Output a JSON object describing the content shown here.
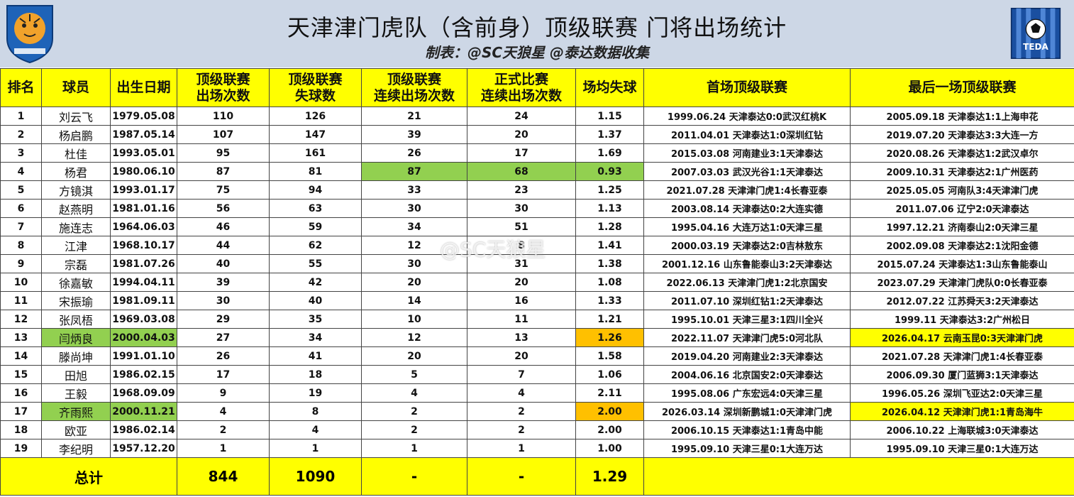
{
  "title": "天津津门虎队（含前身）顶级联赛 门将出场统计",
  "subtitle": "制表：@SC天狼星 @泰达数据收集",
  "logos": {
    "left_logo": "tianjin-tiger-crest",
    "right_logo": "teda-crest",
    "right_text": "TEDA"
  },
  "colors": {
    "header_bg": "#ffff00",
    "highlight_green": "#92d050",
    "highlight_orange": "#ffc000",
    "banner_bg": "#cdd7e6"
  },
  "table": {
    "headers": {
      "rank": "排名",
      "player": "球员",
      "birth": "出生日期",
      "apps_l1": "顶级联赛",
      "apps_l2": "出场次数",
      "ga_l1": "顶级联赛",
      "ga_l2": "失球数",
      "cons_l1": "顶级联赛",
      "cons_l2": "连续出场次数",
      "offcons_l1": "正式比赛",
      "offcons_l2": "连续出场次数",
      "avg": "场均失球",
      "first": "首场顶级联赛",
      "last": "最后一场顶级联赛"
    },
    "rows": [
      {
        "rank": "1",
        "name": "刘云飞",
        "birth": "1979.05.08",
        "apps": "110",
        "ga": "126",
        "cons": "21",
        "offcons": "24",
        "avg": "1.15",
        "first": "1999.06.24 天津泰达0:0武汉红桃K",
        "last": "2005.09.18 天津泰达1:1上海申花"
      },
      {
        "rank": "2",
        "name": "杨启鹏",
        "birth": "1987.05.14",
        "apps": "107",
        "ga": "147",
        "cons": "39",
        "offcons": "20",
        "avg": "1.37",
        "first": "2011.04.01 天津泰达1:0深圳红钻",
        "last": "2019.07.20 天津泰达3:3大连一方"
      },
      {
        "rank": "3",
        "name": "杜佳",
        "birth": "1993.05.01",
        "apps": "95",
        "ga": "161",
        "cons": "26",
        "offcons": "17",
        "avg": "1.69",
        "first": "2015.03.08 河南建业3:1天津泰达",
        "last": "2020.08.26 天津泰达1:2武汉卓尔"
      },
      {
        "rank": "4",
        "name": "杨君",
        "birth": "1980.06.10",
        "apps": "87",
        "ga": "81",
        "cons": "87",
        "offcons": "68",
        "avg": "0.93",
        "first": "2007.03.03 武汉光谷1:1天津泰达",
        "last": "2009.10.31 天津泰达2:1广州医药"
      },
      {
        "rank": "5",
        "name": "方镜淇",
        "birth": "1993.01.17",
        "apps": "75",
        "ga": "94",
        "cons": "33",
        "offcons": "23",
        "avg": "1.25",
        "first": "2021.07.28 天津津门虎1:4长春亚泰",
        "last": "2025.05.05 河南队3:4天津津门虎"
      },
      {
        "rank": "6",
        "name": "赵燕明",
        "birth": "1981.01.16",
        "apps": "56",
        "ga": "63",
        "cons": "30",
        "offcons": "30",
        "avg": "1.13",
        "first": "2003.08.14 天津泰达0:2大连实德",
        "last": "2011.07.06 辽宁2:0天津泰达"
      },
      {
        "rank": "7",
        "name": "施连志",
        "birth": "1964.06.03",
        "apps": "46",
        "ga": "59",
        "cons": "34",
        "offcons": "51",
        "avg": "1.28",
        "first": "1995.04.16 大连万达1:0天津三星",
        "last": "1997.12.21 济南泰山2:0天津三星"
      },
      {
        "rank": "8",
        "name": "江津",
        "birth": "1968.10.17",
        "apps": "44",
        "ga": "62",
        "cons": "12",
        "offcons": "8",
        "avg": "1.41",
        "first": "2000.03.19 天津泰达2:0吉林敖东",
        "last": "2002.09.08 天津泰达2:1沈阳金德"
      },
      {
        "rank": "9",
        "name": "宗磊",
        "birth": "1981.07.26",
        "apps": "40",
        "ga": "55",
        "cons": "30",
        "offcons": "31",
        "avg": "1.38",
        "first": "2001.12.16 山东鲁能泰山3:2天津泰达",
        "last": "2015.07.24 天津泰达1:3山东鲁能泰山"
      },
      {
        "rank": "10",
        "name": "徐嘉敏",
        "birth": "1994.04.11",
        "apps": "39",
        "ga": "42",
        "cons": "20",
        "offcons": "20",
        "avg": "1.08",
        "first": "2022.06.13 天津津门虎1:2北京国安",
        "last": "2023.07.29 天津津门虎队0:0长春亚泰"
      },
      {
        "rank": "11",
        "name": "宋振瑜",
        "birth": "1981.09.11",
        "apps": "30",
        "ga": "40",
        "cons": "14",
        "offcons": "16",
        "avg": "1.33",
        "first": "2011.07.10 深圳红钻1:2天津泰达",
        "last": "2012.07.22 江苏舜天3:2天津泰达"
      },
      {
        "rank": "12",
        "name": "张凤梧",
        "birth": "1969.03.08",
        "apps": "29",
        "ga": "35",
        "cons": "10",
        "offcons": "11",
        "avg": "1.21",
        "first": "1995.10.01 天津三星3:1四川全兴",
        "last": "1999.11 天津泰达3:2广州松日"
      },
      {
        "rank": "13",
        "name": "闫炳良",
        "birth": "2000.04.03",
        "apps": "27",
        "ga": "34",
        "cons": "12",
        "offcons": "13",
        "avg": "1.26",
        "first": "2022.11.07 天津津门虎5:0河北队",
        "last": "2026.04.17 云南玉昆0:3天津津门虎"
      },
      {
        "rank": "14",
        "name": "滕尚坤",
        "birth": "1991.01.10",
        "apps": "26",
        "ga": "41",
        "cons": "20",
        "offcons": "20",
        "avg": "1.58",
        "first": "2019.04.20 河南建业2:3天津泰达",
        "last": "2021.07.28 天津津门虎1:4长春亚泰"
      },
      {
        "rank": "15",
        "name": "田旭",
        "birth": "1986.02.15",
        "apps": "17",
        "ga": "18",
        "cons": "5",
        "offcons": "7",
        "avg": "1.06",
        "first": "2004.06.16 北京国安2:0天津泰达",
        "last": "2006.09.30 厦门蓝狮3:1天津泰达"
      },
      {
        "rank": "16",
        "name": "王毅",
        "birth": "1968.09.09",
        "apps": "9",
        "ga": "19",
        "cons": "4",
        "offcons": "4",
        "avg": "2.11",
        "first": "1995.08.06 广东宏远4:0天津三星",
        "last": "1996.05.26 深圳飞亚达2:0天津三星"
      },
      {
        "rank": "17",
        "name": "齐雨熙",
        "birth": "2000.11.21",
        "apps": "4",
        "ga": "8",
        "cons": "2",
        "offcons": "2",
        "avg": "2.00",
        "first": "2026.03.14 深圳新鹏城1:0天津津门虎",
        "last": "2026.04.12 天津津门虎1:1青岛海牛"
      },
      {
        "rank": "18",
        "name": "欧亚",
        "birth": "1986.02.14",
        "apps": "2",
        "ga": "4",
        "cons": "2",
        "offcons": "2",
        "avg": "2.00",
        "first": "2006.10.15 天津泰达1:1青岛中能",
        "last": "2006.10.22 上海联城3:0天津泰达"
      },
      {
        "rank": "19",
        "name": "李纪明",
        "birth": "1957.12.20",
        "apps": "1",
        "ga": "1",
        "cons": "1",
        "offcons": "1",
        "avg": "1.00",
        "first": "1995.09.10 天津三星0:1大连万达",
        "last": "1995.09.10 天津三星0:1大连万达"
      }
    ],
    "total": {
      "label": "总计",
      "apps": "844",
      "ga": "1090",
      "cons": "-",
      "offcons": "-",
      "avg": "1.29"
    }
  },
  "watermark": "@SC天狼星"
}
